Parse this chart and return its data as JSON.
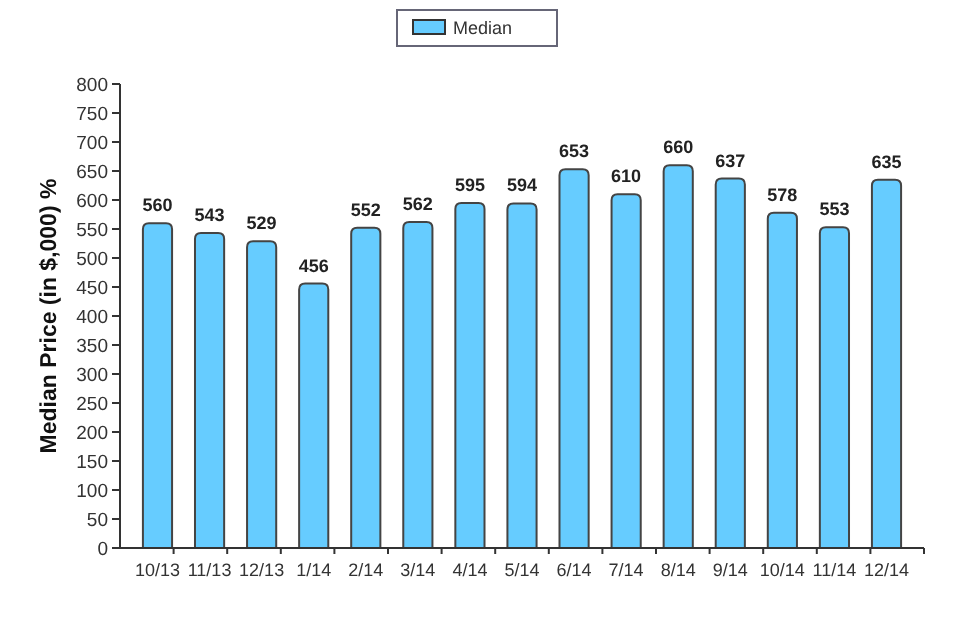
{
  "chart_data": {
    "type": "bar",
    "ylabel": "Median Price (in $,000) %",
    "categories": [
      "10/13",
      "11/13",
      "12/13",
      "1/14",
      "2/14",
      "3/14",
      "4/14",
      "5/14",
      "6/14",
      "7/14",
      "8/14",
      "9/14",
      "10/14",
      "11/14",
      "12/14"
    ],
    "series": [
      {
        "name": "Median",
        "color": "#66ccff",
        "values": [
          560,
          543,
          529,
          456,
          552,
          562,
          595,
          594,
          653,
          610,
          660,
          637,
          578,
          553,
          635
        ]
      }
    ],
    "ylim": [
      0,
      800
    ],
    "yticks": [
      0,
      50,
      100,
      150,
      200,
      250,
      300,
      350,
      400,
      450,
      500,
      550,
      600,
      650,
      700,
      750,
      800
    ],
    "data_labels": true,
    "legend": "top",
    "grid": false
  }
}
